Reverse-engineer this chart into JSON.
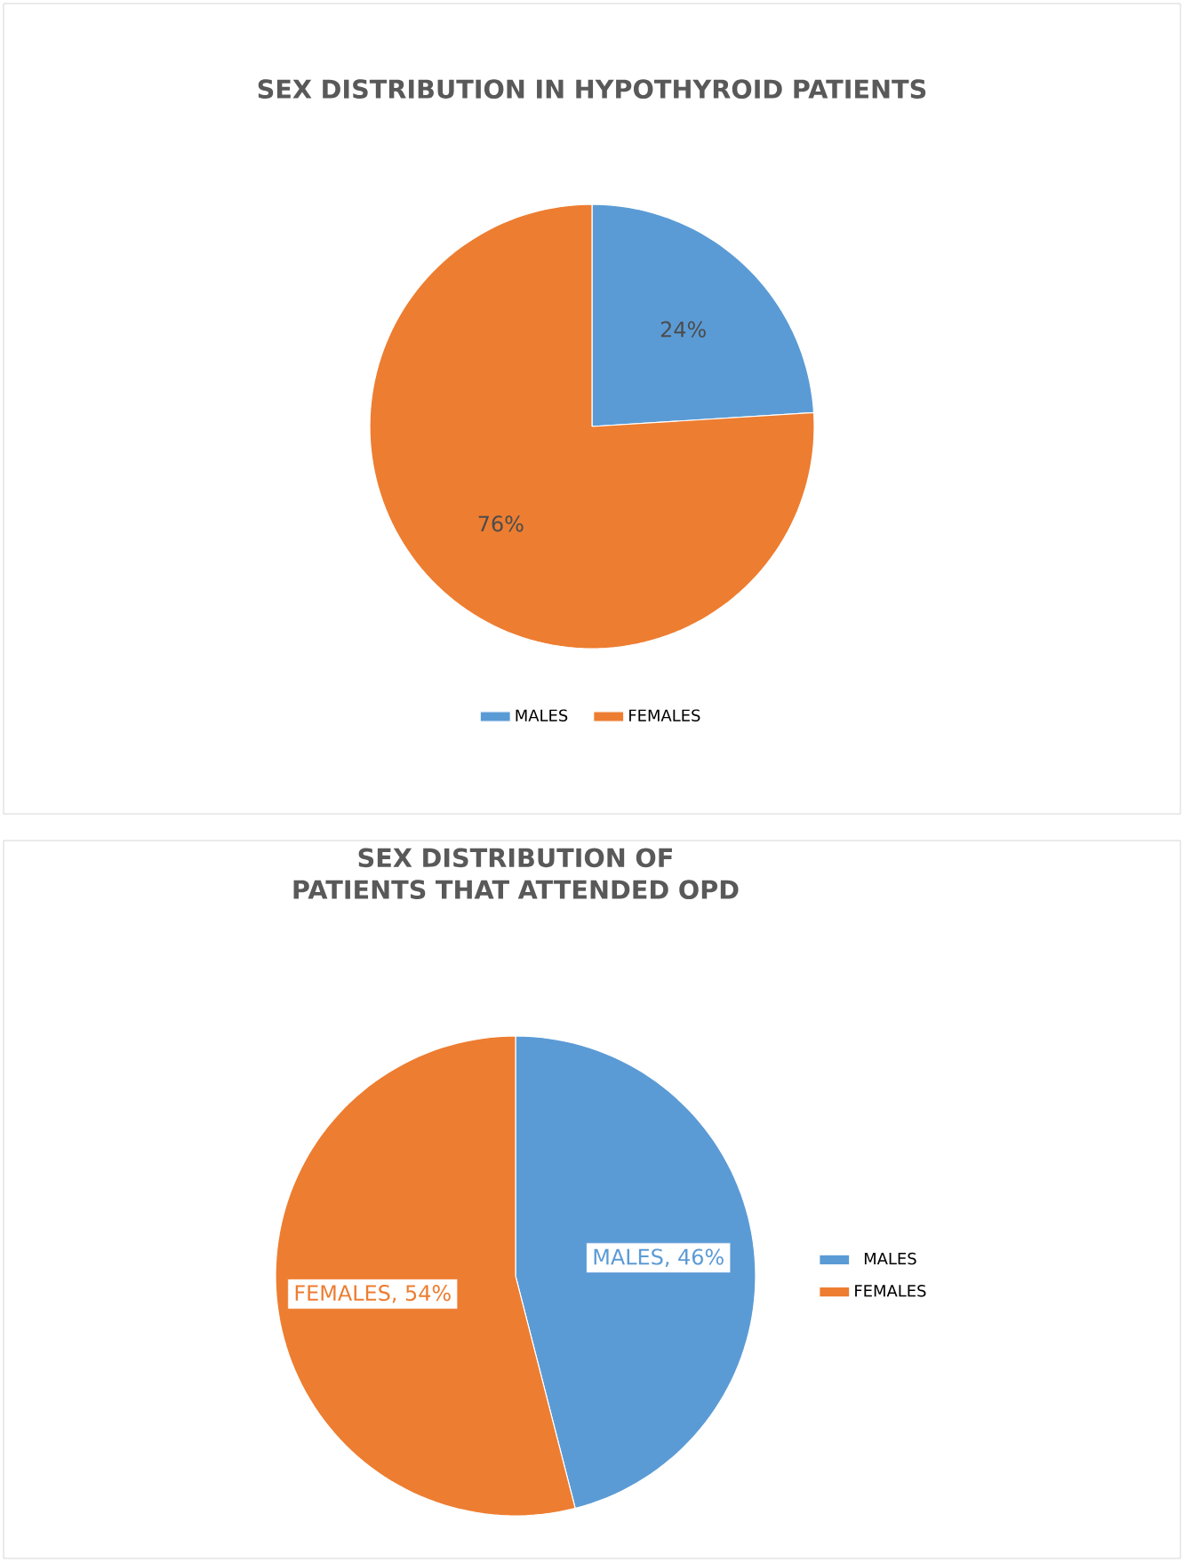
{
  "chart_data": [
    {
      "type": "pie",
      "title": "SEX DISTRIBUTION IN HYPOTHYROID PATIENTS",
      "categories": [
        "MALES",
        "FEMALES"
      ],
      "values": [
        24,
        76
      ],
      "colors": [
        "#5b9bd5",
        "#ed7d31"
      ],
      "value_labels": [
        "24%",
        "76%"
      ],
      "legend": "bottom"
    },
    {
      "type": "pie",
      "title": "SEX DISTRIBUTION OF PATIENTS THAT ATTENDED OPD",
      "categories": [
        "MALES",
        "FEMALES"
      ],
      "values": [
        46,
        54
      ],
      "colors": [
        "#5b9bd5",
        "#ed7d31"
      ],
      "value_labels": [
        "MALES, 46%",
        "FEMALES, 54%"
      ],
      "legend": "right"
    }
  ]
}
